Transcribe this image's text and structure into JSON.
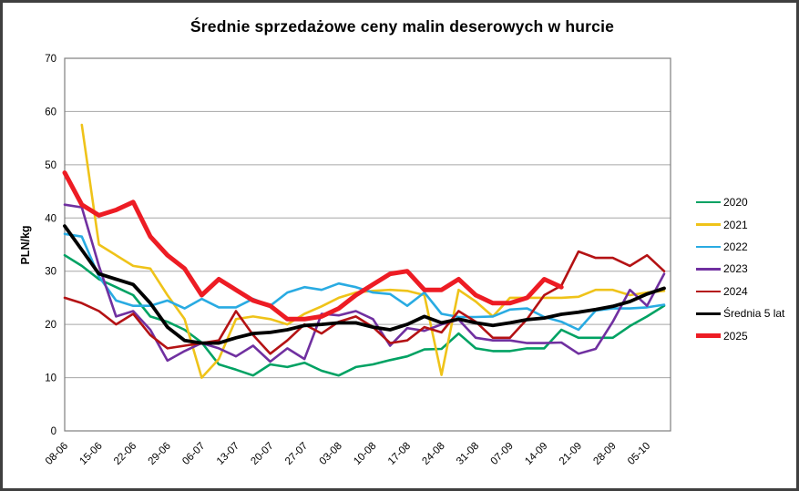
{
  "chart_data": {
    "type": "line",
    "title": "Średnie sprzedażowe ceny malin deserowych w hurcie",
    "xlabel": "",
    "ylabel": "PLN/kg",
    "ylim": [
      0,
      70
    ],
    "y_ticks": [
      0,
      10,
      20,
      30,
      40,
      50,
      60,
      70
    ],
    "grid": "horizontal",
    "legend_position": "right",
    "points_per_week": 2,
    "x_tick_labels": [
      "08-06",
      "15-06",
      "22-06",
      "29-06",
      "06-07",
      "13-07",
      "20-07",
      "27-07",
      "03-08",
      "10-08",
      "17-08",
      "24-08",
      "31-08",
      "07-09",
      "14-09",
      "21-09",
      "28-09",
      "05-10"
    ],
    "series": [
      {
        "name": "2020",
        "color": "#00A263",
        "width": 2.6,
        "values": [
          33,
          31,
          28.5,
          27,
          25.5,
          21.5,
          20.5,
          19,
          16.6,
          12.5,
          11.5,
          10.4,
          12.5,
          12,
          12.8,
          11.3,
          10.4,
          12,
          12.5,
          13.3,
          14,
          15.3,
          15.4,
          18.3,
          15.5,
          15,
          15,
          15.5,
          15.5,
          19,
          17.5,
          17.5,
          17.5,
          19.7,
          21.5,
          23.5
        ]
      },
      {
        "name": "2021",
        "color": "#EFC319",
        "width": 2.6,
        "values": [
          null,
          57.5,
          35,
          33,
          31,
          30.5,
          25.5,
          21,
          10,
          13.5,
          21,
          21.5,
          21,
          20,
          22,
          23.4,
          25,
          26,
          26.3,
          26.5,
          26.3,
          25.5,
          10.5,
          26.5,
          24.3,
          21.5,
          25,
          25,
          25,
          25,
          25.2,
          26.5,
          26.5,
          25.5,
          26,
          26.3
        ]
      },
      {
        "name": "2022",
        "color": "#29ABE2",
        "width": 2.6,
        "values": [
          37,
          36.5,
          29,
          24.5,
          23.5,
          23.5,
          24.5,
          23,
          24.8,
          23.2,
          23.2,
          24.8,
          23.5,
          26,
          27,
          26.5,
          27.7,
          27,
          26,
          25.7,
          23.5,
          26,
          22,
          21.4,
          21.4,
          21.5,
          22.8,
          23,
          21.4,
          20.5,
          19,
          22.6,
          23,
          23,
          23.2,
          23.7
        ]
      },
      {
        "name": "2023",
        "color": "#7030A0",
        "width": 2.6,
        "values": [
          42.5,
          42,
          31,
          21.5,
          22.5,
          19,
          13.2,
          15,
          16.5,
          15.5,
          14,
          16,
          13,
          15.5,
          13.5,
          22,
          21.7,
          22.5,
          21,
          16,
          19.3,
          18.8,
          20,
          20.9,
          17.5,
          17,
          17,
          16.5,
          16.5,
          16.6,
          14.5,
          15.4,
          20.5,
          26.5,
          23.5,
          29.5
        ]
      },
      {
        "name": "2024",
        "color": "#B41214",
        "width": 2.6,
        "values": [
          25,
          24,
          22.5,
          20,
          22,
          18,
          15.5,
          16,
          16.5,
          17,
          22.5,
          18,
          14.5,
          17,
          20,
          18.3,
          20.5,
          21.5,
          19.5,
          16.5,
          17,
          19.5,
          18.5,
          22.5,
          20.5,
          17.5,
          17.5,
          21,
          25.5,
          27.3,
          33.7,
          32.5,
          32.5,
          31,
          33,
          30
        ]
      },
      {
        "name": "Średnia 5 lat",
        "color": "#000000",
        "width": 3.8,
        "values": [
          38.5,
          34,
          29.5,
          28.5,
          27.5,
          24,
          19.5,
          17,
          16.5,
          16.5,
          17.5,
          18.3,
          18.5,
          19,
          19.8,
          20,
          20.3,
          20.3,
          19.5,
          19,
          20,
          21.5,
          20.3,
          21,
          20.3,
          19.8,
          20.3,
          20.9,
          21.2,
          21.9,
          22.3,
          22.8,
          23.4,
          24.3,
          25.7,
          26.8
        ]
      },
      {
        "name": "2025",
        "color": "#ED1C24",
        "width": 5,
        "values": [
          48.5,
          42.5,
          40.5,
          41.5,
          43,
          36.5,
          33,
          30.5,
          25.5,
          28.5,
          26.5,
          24.5,
          23.5,
          21,
          21,
          21.5,
          23,
          25.5,
          27.5,
          29.5,
          30,
          26.5,
          26.5,
          28.5,
          25.5,
          24,
          24,
          25,
          28.5,
          27,
          null,
          null,
          null,
          null,
          null,
          null
        ]
      }
    ],
    "style": {
      "gridline_color": "#A6A6A6",
      "plot_border_color": "#7F7F7F",
      "tick_label_color": "#000000"
    }
  }
}
